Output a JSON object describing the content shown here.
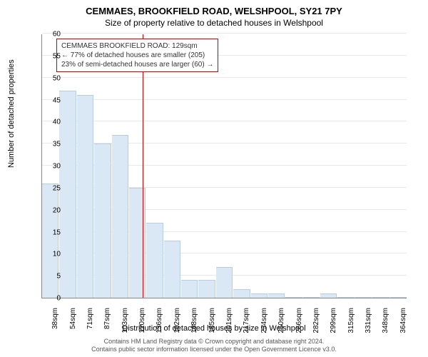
{
  "header": {
    "title": "CEMMAES, BROOKFIELD ROAD, WELSHPOOL, SY21 7PY",
    "subtitle": "Size of property relative to detached houses in Welshpool"
  },
  "chart": {
    "type": "bar",
    "ylabel": "Number of detached properties",
    "xlabel": "Distribution of detached houses by size in Welshpool",
    "ylim": [
      0,
      60
    ],
    "ytick_step": 5,
    "yticks": [
      0,
      5,
      10,
      15,
      20,
      25,
      30,
      35,
      40,
      45,
      50,
      55,
      60
    ],
    "categories": [
      "38sqm",
      "54sqm",
      "71sqm",
      "87sqm",
      "103sqm",
      "120sqm",
      "136sqm",
      "152sqm",
      "168sqm",
      "185sqm",
      "201sqm",
      "217sqm",
      "234sqm",
      "250sqm",
      "266sqm",
      "282sqm",
      "299sqm",
      "315sqm",
      "331sqm",
      "348sqm",
      "364sqm"
    ],
    "values": [
      26,
      47,
      46,
      35,
      37,
      25,
      17,
      13,
      4,
      4,
      7,
      2,
      1,
      1,
      0,
      0,
      1,
      0,
      0,
      0,
      0
    ],
    "bar_fill": "#dae8f5",
    "bar_stroke": "#b7cde2",
    "background_color": "#ffffff",
    "grid_color": "#e8e8e8",
    "axis_color": "#888888",
    "tick_fontsize": 10,
    "label_fontsize": 11,
    "title_fontsize": 13,
    "marker": {
      "position_index": 5.8,
      "color": "#cc0000"
    },
    "annotation": {
      "line1": "CEMMAES BROOKFIELD ROAD: 129sqm",
      "line2": "← 77% of detached houses are smaller (205)",
      "line3": "23% of semi-detached houses are larger (60) →",
      "border_color": "#cc0000",
      "text_color": "#333333"
    }
  },
  "footer": {
    "line1": "Contains HM Land Registry data © Crown copyright and database right 2024.",
    "line2": "Contains public sector information licensed under the Open Government Licence v3.0."
  }
}
